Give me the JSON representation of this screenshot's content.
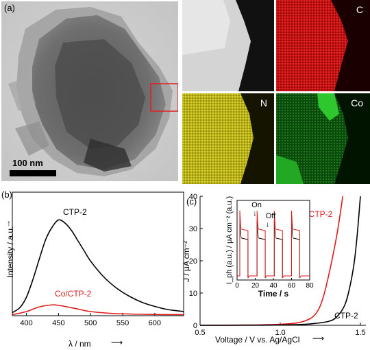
{
  "panel_a": {
    "label": "(a)",
    "scale_bar": "100 nm",
    "maps": [
      {
        "label": "",
        "color": "#d8d8d8"
      },
      {
        "label": "C",
        "color": "#d11818"
      },
      {
        "label": "N",
        "color": "#c9c21a"
      },
      {
        "label": "Co",
        "color": "#22b822"
      }
    ]
  },
  "chart_data": [
    {
      "type": "line",
      "panel": "(b)",
      "xlabel": "λ / nm",
      "ylabel": "Intensity / a.u.",
      "xticks": [
        400,
        450,
        500,
        550,
        600
      ],
      "xlim": [
        378,
        645
      ],
      "ylim": [
        0,
        1
      ],
      "series": [
        {
          "name": "CTP-2",
          "color": "#000000",
          "x": [
            378,
            390,
            400,
            410,
            420,
            430,
            440,
            450,
            460,
            470,
            480,
            490,
            500,
            520,
            540,
            560,
            580,
            600,
            620,
            645
          ],
          "y": [
            0.03,
            0.08,
            0.18,
            0.35,
            0.55,
            0.74,
            0.86,
            0.93,
            0.9,
            0.83,
            0.73,
            0.63,
            0.53,
            0.38,
            0.27,
            0.19,
            0.13,
            0.09,
            0.06,
            0.04
          ]
        },
        {
          "name": "Co/CTP-2",
          "color": "#dd1a1a",
          "x": [
            378,
            400,
            420,
            440,
            450,
            460,
            480,
            500,
            540,
            600,
            645
          ],
          "y": [
            0.01,
            0.04,
            0.085,
            0.105,
            0.1,
            0.09,
            0.065,
            0.04,
            0.02,
            0.012,
            0.01
          ]
        }
      ]
    },
    {
      "type": "line",
      "panel": "(c)",
      "xlabel": "Voltage / V vs. Ag/AgCl",
      "ylabel": "J / μA cm⁻²",
      "xticks": [
        0.5,
        1.0,
        1.5
      ],
      "yticks": [
        0,
        10,
        20,
        30,
        40
      ],
      "xlim": [
        0.5,
        1.5
      ],
      "ylim": [
        0,
        40
      ],
      "series": [
        {
          "name": "Co/CTP-2",
          "color": "#dd1a1a",
          "x": [
            0.5,
            0.8,
            1.0,
            1.1,
            1.15,
            1.2,
            1.24,
            1.27,
            1.3,
            1.33,
            1.36,
            1.39
          ],
          "y": [
            0,
            0.1,
            0.3,
            0.7,
            1.3,
            2.5,
            5,
            9,
            15,
            22,
            30,
            40
          ]
        },
        {
          "name": "CTP-2",
          "color": "#000000",
          "x": [
            0.5,
            0.9,
            1.1,
            1.2,
            1.3,
            1.35,
            1.4,
            1.43,
            1.46,
            1.48,
            1.5
          ],
          "y": [
            0,
            0.05,
            0.2,
            0.5,
            1.2,
            2.5,
            6,
            11,
            19,
            28,
            40
          ]
        }
      ],
      "inset": {
        "xlabel": "Time / s",
        "ylabel": "I_ph (a.u.) / μA cm⁻² (a.u.)",
        "xticks": [
          0,
          20,
          40,
          60,
          80
        ],
        "xlim": [
          0,
          80
        ],
        "annotations": [
          "On",
          "Off"
        ],
        "on_times": [
          3,
          22,
          41,
          60
        ],
        "on_duration": 9
      }
    }
  ]
}
